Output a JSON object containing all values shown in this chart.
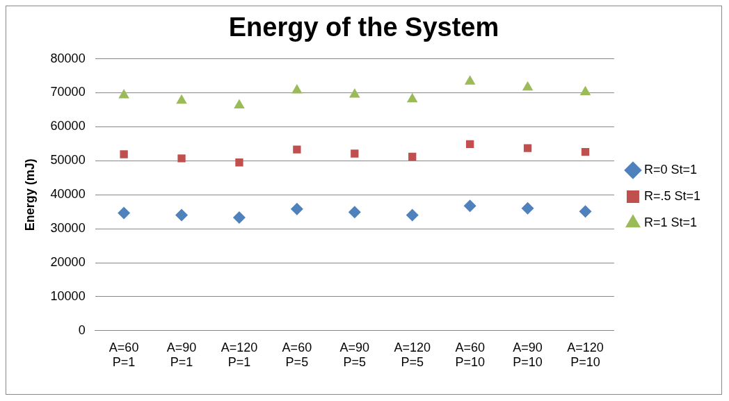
{
  "chart_data": {
    "type": "scatter",
    "title": "Energy of the System",
    "ylabel": "Energy (mJ)",
    "categories": [
      "A=60 P=1",
      "A=90 P=1",
      "A=120 P=1",
      "A=60 P=5",
      "A=90 P=5",
      "A=120 P=5",
      "A=60 P=10",
      "A=90 P=10",
      "A=120 P=10"
    ],
    "series": [
      {
        "name": "R=0 St=1",
        "color": "#4f81bd",
        "marker": "diamond",
        "values": [
          34600,
          34000,
          33300,
          35800,
          34900,
          34000,
          36700,
          36000,
          35100
        ]
      },
      {
        "name": "R=.5 St=1",
        "color": "#c0504d",
        "marker": "square",
        "values": [
          51900,
          50700,
          49500,
          53300,
          52100,
          51200,
          54900,
          53700,
          52600
        ]
      },
      {
        "name": "R=1 St=1",
        "color": "#9bbb59",
        "marker": "triangle",
        "values": [
          69300,
          67700,
          66300,
          70700,
          69500,
          68100,
          73300,
          71600,
          70200
        ]
      }
    ],
    "ylim": [
      0,
      80000
    ],
    "yticks": [
      0,
      10000,
      20000,
      30000,
      40000,
      50000,
      60000,
      70000,
      80000
    ],
    "grid": "y",
    "legend": "right"
  }
}
